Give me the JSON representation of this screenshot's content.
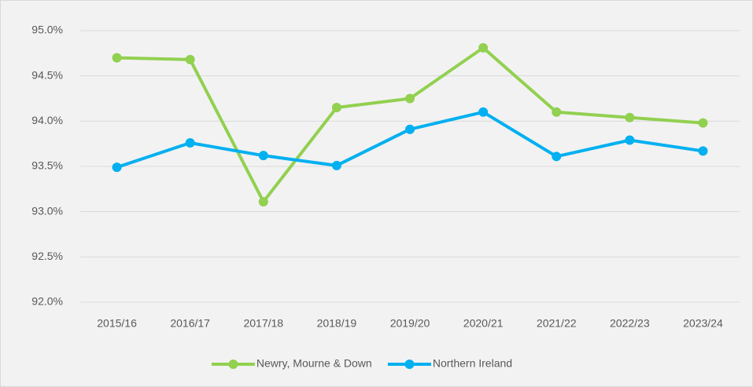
{
  "chart_data": {
    "type": "line",
    "categories": [
      "2015/16",
      "2016/17",
      "2017/18",
      "2018/19",
      "2019/20",
      "2020/21",
      "2021/22",
      "2022/23",
      "2023/24"
    ],
    "series": [
      {
        "name": "Newry, Mourne & Down",
        "color": "#92d050",
        "values": [
          94.7,
          94.68,
          93.11,
          94.15,
          94.25,
          94.81,
          94.1,
          94.04,
          93.98
        ]
      },
      {
        "name": "Northern Ireland",
        "color": "#00b0f0",
        "values": [
          93.49,
          93.76,
          93.62,
          93.51,
          93.91,
          94.1,
          93.61,
          93.79,
          93.67
        ]
      }
    ],
    "ylim": [
      92,
      95
    ],
    "yticks": [
      {
        "value": 92,
        "label": "92.0%"
      },
      {
        "value": 92.5,
        "label": "92.5%"
      },
      {
        "value": 93,
        "label": "93.0%"
      },
      {
        "value": 93.5,
        "label": "93.5%"
      },
      {
        "value": 94,
        "label": "94.0%"
      },
      {
        "value": 94.5,
        "label": "94.5%"
      },
      {
        "value": 95,
        "label": "95.0%"
      }
    ],
    "grid": true,
    "legend": "bottom"
  }
}
